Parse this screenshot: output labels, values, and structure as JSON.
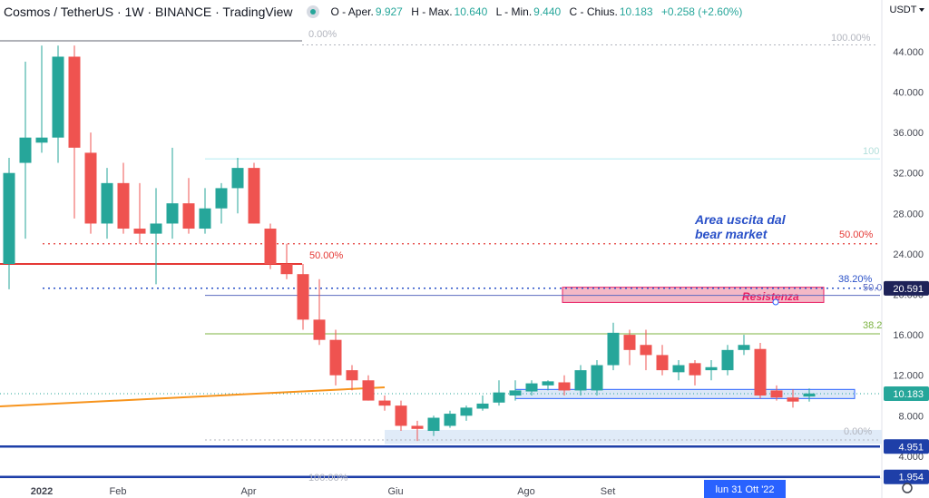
{
  "header": {
    "title": "Cosmos / TetherUS · 1W · BINANCE · TradingView",
    "ohlc": [
      {
        "key": "O - Aper.",
        "value": "9.927"
      },
      {
        "key": "H - Max.",
        "value": "10.640"
      },
      {
        "key": "L - Min.",
        "value": "9.440"
      },
      {
        "key": "C - Chius.",
        "value": "10.183"
      },
      {
        "key": "",
        "value": "+0.258 (+2.60%)"
      }
    ],
    "currency": "USDT"
  },
  "colors": {
    "up": "#26a69a",
    "down": "#ef5350",
    "text": "#131722",
    "axis_text": "#434651",
    "blue_annotation": "#2950c8",
    "orange_line": "#f7941d",
    "red_line": "#e53935",
    "resistance_fill": "#f4b8c6",
    "resistance_border": "#e91e63",
    "support_fill": "#dbe7f7"
  },
  "chart_data": {
    "type": "candlestick",
    "ylim": [
      1,
      50
    ],
    "y_ticks": [
      4,
      8,
      12,
      16,
      20,
      24,
      28,
      32,
      36,
      40,
      44
    ],
    "y_tick_labels": [
      "4.000",
      "8.000",
      "12.000",
      "16.000",
      "20.000",
      "24.000",
      "28.000",
      "32.000",
      "36.000",
      "40.000",
      "44.000"
    ],
    "x_labels": [
      {
        "label": "2022",
        "index": 2,
        "bold": true
      },
      {
        "label": "Feb",
        "index": 7
      },
      {
        "label": "Apr",
        "index": 15
      },
      {
        "label": "Giu",
        "index": 24
      },
      {
        "label": "Ago",
        "index": 32
      },
      {
        "label": "Set",
        "index": 37
      }
    ],
    "crosshair_date": "lun 31 Ott '22",
    "price_tags": [
      {
        "value": 20.591,
        "label": "20.591",
        "color": "#1e2258"
      },
      {
        "value": 10.183,
        "label": "10.183",
        "color": "#26a69a"
      },
      {
        "value": 4.951,
        "label": "4.951",
        "color": "#1e3fa8"
      },
      {
        "value": 1.954,
        "label": "1.954",
        "color": "#1e3fa8"
      }
    ],
    "candles": [
      {
        "o": 23.0,
        "h": 33.5,
        "l": 20.5,
        "c": 32.0
      },
      {
        "o": 33.0,
        "h": 43.0,
        "l": 25.5,
        "c": 35.5
      },
      {
        "o": 35.0,
        "h": 44.6,
        "l": 34.0,
        "c": 35.5
      },
      {
        "o": 35.5,
        "h": 44.6,
        "l": 33.0,
        "c": 43.5
      },
      {
        "o": 43.5,
        "h": 44.6,
        "l": 27.5,
        "c": 34.5
      },
      {
        "o": 34.0,
        "h": 36.0,
        "l": 26.0,
        "c": 27.0
      },
      {
        "o": 27.0,
        "h": 32.5,
        "l": 25.5,
        "c": 31.0
      },
      {
        "o": 31.0,
        "h": 33.0,
        "l": 26.0,
        "c": 26.5
      },
      {
        "o": 26.5,
        "h": 31.0,
        "l": 25.0,
        "c": 26.0
      },
      {
        "o": 26.0,
        "h": 30.5,
        "l": 21.0,
        "c": 27.0
      },
      {
        "o": 27.0,
        "h": 34.5,
        "l": 25.5,
        "c": 29.0
      },
      {
        "o": 29.0,
        "h": 31.5,
        "l": 26.0,
        "c": 26.5
      },
      {
        "o": 26.5,
        "h": 30.5,
        "l": 26.0,
        "c": 28.5
      },
      {
        "o": 28.5,
        "h": 31.0,
        "l": 27.0,
        "c": 30.5
      },
      {
        "o": 30.5,
        "h": 33.5,
        "l": 28.0,
        "c": 32.5
      },
      {
        "o": 32.5,
        "h": 33.0,
        "l": 27.0,
        "c": 27.0
      },
      {
        "o": 26.5,
        "h": 27.0,
        "l": 22.5,
        "c": 23.0
      },
      {
        "o": 23.0,
        "h": 25.0,
        "l": 21.5,
        "c": 22.0
      },
      {
        "o": 22.0,
        "h": 23.0,
        "l": 16.5,
        "c": 17.5
      },
      {
        "o": 17.5,
        "h": 21.5,
        "l": 15.0,
        "c": 15.5
      },
      {
        "o": 15.5,
        "h": 16.5,
        "l": 11.0,
        "c": 12.0
      },
      {
        "o": 12.5,
        "h": 13.0,
        "l": 10.5,
        "c": 11.5
      },
      {
        "o": 11.5,
        "h": 12.0,
        "l": 9.5,
        "c": 9.5
      },
      {
        "o": 9.5,
        "h": 10.0,
        "l": 8.5,
        "c": 9.0
      },
      {
        "o": 9.0,
        "h": 9.5,
        "l": 6.5,
        "c": 7.0
      },
      {
        "o": 7.0,
        "h": 7.5,
        "l": 5.5,
        "c": 6.7
      },
      {
        "o": 6.5,
        "h": 8.0,
        "l": 6.0,
        "c": 7.8
      },
      {
        "o": 7.0,
        "h": 8.5,
        "l": 6.8,
        "c": 8.2
      },
      {
        "o": 8.0,
        "h": 9.0,
        "l": 7.5,
        "c": 8.8
      },
      {
        "o": 8.7,
        "h": 10.0,
        "l": 8.5,
        "c": 9.2
      },
      {
        "o": 9.3,
        "h": 11.5,
        "l": 9.0,
        "c": 10.3
      },
      {
        "o": 10.0,
        "h": 11.5,
        "l": 9.5,
        "c": 10.5
      },
      {
        "o": 10.4,
        "h": 11.5,
        "l": 10.0,
        "c": 11.2
      },
      {
        "o": 11.0,
        "h": 11.5,
        "l": 10.5,
        "c": 11.4
      },
      {
        "o": 11.3,
        "h": 12.0,
        "l": 10.0,
        "c": 10.5
      },
      {
        "o": 10.5,
        "h": 13.0,
        "l": 10.0,
        "c": 12.5
      },
      {
        "o": 10.5,
        "h": 13.5,
        "l": 10.0,
        "c": 13.0
      },
      {
        "o": 13.0,
        "h": 17.2,
        "l": 12.5,
        "c": 16.2
      },
      {
        "o": 16.0,
        "h": 16.5,
        "l": 13.0,
        "c": 14.5
      },
      {
        "o": 15.0,
        "h": 16.5,
        "l": 12.5,
        "c": 14.0
      },
      {
        "o": 14.0,
        "h": 15.0,
        "l": 12.0,
        "c": 12.5
      },
      {
        "o": 12.3,
        "h": 13.5,
        "l": 11.5,
        "c": 13.0
      },
      {
        "o": 13.2,
        "h": 13.5,
        "l": 11.0,
        "c": 12.0
      },
      {
        "o": 12.5,
        "h": 13.5,
        "l": 11.5,
        "c": 12.8
      },
      {
        "o": 12.5,
        "h": 15.0,
        "l": 12.0,
        "c": 14.5
      },
      {
        "o": 14.5,
        "h": 16.0,
        "l": 14.0,
        "c": 15.0
      },
      {
        "o": 14.6,
        "h": 15.2,
        "l": 9.7,
        "c": 10.0
      },
      {
        "o": 10.5,
        "h": 11.0,
        "l": 9.5,
        "c": 9.8
      },
      {
        "o": 9.8,
        "h": 10.6,
        "l": 8.8,
        "c": 9.4
      },
      {
        "o": 9.9,
        "h": 10.7,
        "l": 9.4,
        "c": 10.2
      }
    ],
    "annotations": {
      "area_text_line1": "Area uscita dal",
      "area_text_line2": "bear market",
      "resistance_label": "Resistenza",
      "fib_labels": {
        "top_left": "0.00%",
        "top_right": "100.00%",
        "red_50_left": "50.00%",
        "red_50_right": "50.00%",
        "blue_382": "38.20%",
        "purple_50": "50.0",
        "green_382": "38.2",
        "cyan_100": "100",
        "bottom_a": "0.00%",
        "bottom_b": "100.00%"
      }
    }
  }
}
